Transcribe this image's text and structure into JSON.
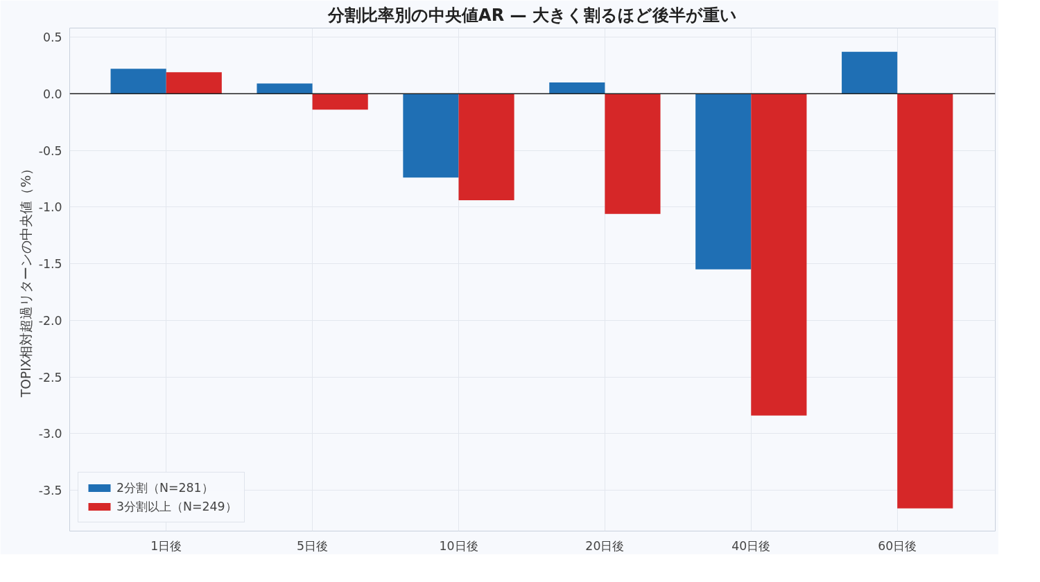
{
  "chart_data": {
    "type": "bar",
    "title": "分割比率別の中央値AR — 大きく割るほど後半が重い",
    "ylabel": "TOPIX相対超過リターンの中央値（%）",
    "categories": [
      "1日後",
      "5日後",
      "10日後",
      "20日後",
      "40日後",
      "60日後"
    ],
    "series": [
      {
        "name": "2分割（N=281）",
        "color": "#1f6fb4",
        "values": [
          0.22,
          0.09,
          -0.74,
          0.1,
          -1.55,
          0.37
        ]
      },
      {
        "name": "3分割以上（N=249）",
        "color": "#d62728",
        "values": [
          0.19,
          -0.14,
          -0.94,
          -1.06,
          -2.84,
          -3.66
        ]
      }
    ],
    "ylim": [
      -3.86,
      0.58
    ],
    "yticks": [
      0.5,
      {
        "value": 0,
        "label": "0.0"
      },
      -0.5,
      {
        "value": -1,
        "label": "-1.0"
      },
      -1.5,
      {
        "value": -2,
        "label": "-2.0"
      },
      -2.5,
      {
        "value": -3,
        "label": "-3.0"
      },
      -3.5
    ],
    "ref_lines": [
      {
        "axis": "y",
        "value": 0,
        "color": "#222222"
      }
    ],
    "grid": true,
    "legend": "bottom left"
  }
}
